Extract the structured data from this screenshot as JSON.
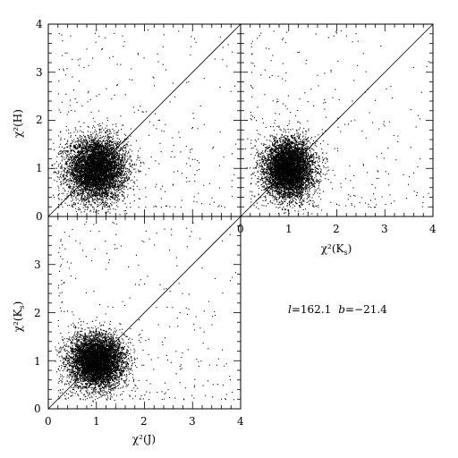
{
  "chart_data": [
    {
      "id": "top-left",
      "type": "scatter",
      "xlabel": "",
      "ylabel": "χ²(H)",
      "xlim": [
        0,
        4
      ],
      "ylim": [
        0,
        4
      ],
      "xticks": [],
      "yticks": [
        "1",
        "2",
        "3",
        "4"
      ],
      "yticks_values": [
        1,
        2,
        3,
        4
      ],
      "diagonal": true,
      "cluster": {
        "x_center": 1.0,
        "y_center": 1.0,
        "x_spread": 0.3,
        "y_spread": 0.32,
        "count": 6000
      },
      "outliers": 350
    },
    {
      "id": "top-right",
      "type": "scatter",
      "xlabel": "χ²(Ks)",
      "ylabel": "",
      "xlim": [
        0,
        4
      ],
      "ylim": [
        0,
        4
      ],
      "xticks": [
        "0",
        "1",
        "2",
        "3",
        "4"
      ],
      "xticks_values": [
        0,
        1,
        2,
        3,
        4
      ],
      "yticks": [],
      "diagonal": true,
      "cluster": {
        "x_center": 1.0,
        "y_center": 1.0,
        "x_spread": 0.25,
        "y_spread": 0.3,
        "count": 6000
      },
      "outliers": 300
    },
    {
      "id": "bottom-left",
      "type": "scatter",
      "xlabel": "χ²(J)",
      "ylabel": "χ²(Ks)",
      "xlim": [
        0,
        4
      ],
      "ylim": [
        0,
        4
      ],
      "xticks": [
        "0",
        "1",
        "2",
        "3",
        "4"
      ],
      "xticks_values": [
        0,
        1,
        2,
        3,
        4
      ],
      "yticks": [
        "0",
        "1",
        "2",
        "3"
      ],
      "yticks_values": [
        0,
        1,
        2,
        3
      ],
      "diagonal": true,
      "cluster": {
        "x_center": 1.0,
        "y_center": 1.0,
        "x_spread": 0.28,
        "y_spread": 0.27,
        "count": 6000
      },
      "outliers": 350
    }
  ],
  "annotation": {
    "l_symbol": "l",
    "l_value": "=162.1",
    "b_symbol": "b",
    "b_value": "=−21.4"
  },
  "corner_label_zero": "0"
}
